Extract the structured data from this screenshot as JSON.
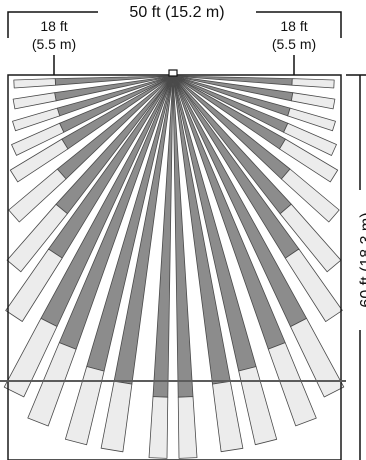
{
  "diagram": {
    "top_dimension_label": "50 ft (15.2 m)",
    "left_offset_label": {
      "line1": "18 ft",
      "line2": "(5.5 m)"
    },
    "right_offset_label": {
      "line1": "18 ft",
      "line2": "(5.5 m)"
    },
    "side_dimension_label": "60 ft (18.3 m)",
    "colors": {
      "beam_dark": "#8c8c8c",
      "beam_light": "#ececec",
      "outline": "#4a4a4a",
      "room_border": "#1a1a1a",
      "dimension_line": "#111111",
      "cross_line": "#5c5c5c"
    }
  }
}
